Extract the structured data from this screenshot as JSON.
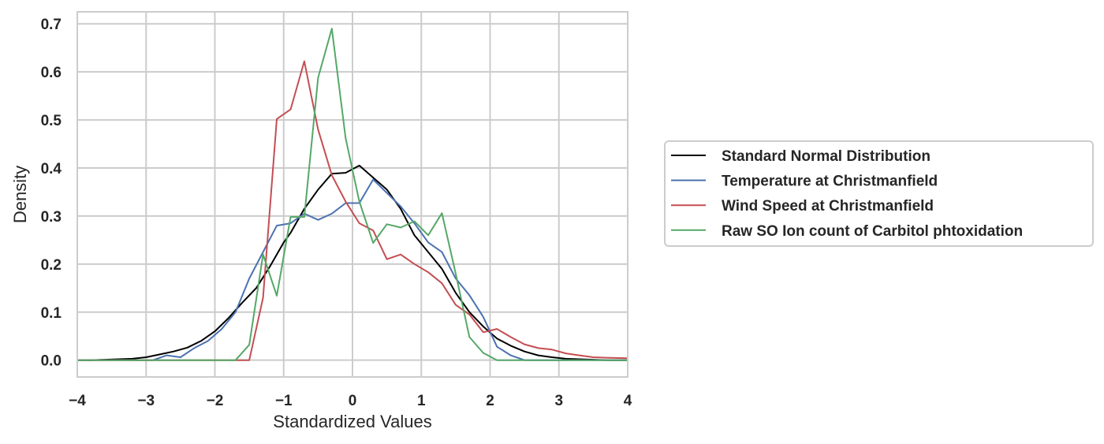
{
  "chart_data": {
    "type": "line",
    "xlabel": "Standardized Values",
    "ylabel": "Density",
    "xlim": [
      -4,
      4
    ],
    "ylim": [
      -0.035,
      0.725
    ],
    "xticks": [
      -4,
      -3,
      -2,
      -1,
      0,
      1,
      2,
      3,
      4
    ],
    "xtick_labels": [
      "−4",
      "−3",
      "−2",
      "−1",
      "0",
      "1",
      "2",
      "3",
      "4"
    ],
    "yticks": [
      0.0,
      0.1,
      0.2,
      0.3,
      0.4,
      0.5,
      0.6,
      0.7
    ],
    "ytick_labels": [
      "0.0",
      "0.1",
      "0.2",
      "0.3",
      "0.4",
      "0.5",
      "0.6",
      "0.7"
    ],
    "grid": true,
    "legend_position": "right, outside plot",
    "x": [
      -4.0,
      -3.8,
      -3.6,
      -3.4,
      -3.2,
      -3.0,
      -2.8,
      -2.6,
      -2.4,
      -2.2,
      -2.0,
      -1.8,
      -1.6,
      -1.4,
      -1.2,
      -1.0,
      -0.8,
      -0.6,
      -0.4,
      -0.2,
      0.0,
      0.2,
      0.4,
      0.6,
      0.8,
      1.0,
      1.2,
      1.4,
      1.6,
      1.8,
      2.0,
      2.2,
      2.4,
      2.6,
      2.8,
      3.0,
      3.2,
      3.4,
      3.6,
      3.8,
      4.0
    ],
    "series": [
      {
        "name": "Standard Normal Distribution",
        "color": "#000000",
        "x": [
          -4.0,
          -3.8,
          -3.6,
          -3.4,
          -3.2,
          -3.0,
          -2.8,
          -2.6,
          -2.4,
          -2.2,
          -2.0,
          -1.8,
          -1.6,
          -1.4,
          -1.2,
          -1.0,
          -0.9,
          -0.7,
          -0.5,
          -0.3,
          -0.1,
          0.1,
          0.3,
          0.5,
          0.7,
          0.9,
          1.1,
          1.3,
          1.5,
          1.7,
          1.9,
          2.1,
          2.3,
          2.5,
          2.7,
          2.9,
          3.1,
          3.3,
          3.5,
          3.7,
          4.0
        ],
        "values": [
          0.0,
          0.0,
          0.001,
          0.002,
          0.003,
          0.006,
          0.012,
          0.018,
          0.026,
          0.04,
          0.06,
          0.088,
          0.12,
          0.15,
          0.195,
          0.245,
          0.265,
          0.315,
          0.355,
          0.388,
          0.39,
          0.405,
          0.38,
          0.355,
          0.315,
          0.26,
          0.225,
          0.19,
          0.14,
          0.1,
          0.07,
          0.045,
          0.03,
          0.018,
          0.01,
          0.006,
          0.003,
          0.002,
          0.001,
          0.0,
          0.0
        ]
      },
      {
        "name": "Temperature at Christmanfield",
        "color": "#4c72b0",
        "x": [
          -4.0,
          -3.0,
          -2.9,
          -2.7,
          -2.5,
          -2.3,
          -2.1,
          -1.9,
          -1.7,
          -1.5,
          -1.3,
          -1.1,
          -0.9,
          -0.7,
          -0.5,
          -0.3,
          -0.1,
          0.1,
          0.3,
          0.5,
          0.7,
          0.9,
          1.1,
          1.3,
          1.5,
          1.7,
          1.9,
          2.1,
          2.3,
          2.5,
          2.7,
          4.0
        ],
        "values": [
          0.0,
          0.0,
          0.0,
          0.01,
          0.006,
          0.025,
          0.04,
          0.065,
          0.1,
          0.17,
          0.225,
          0.28,
          0.285,
          0.305,
          0.292,
          0.305,
          0.327,
          0.327,
          0.376,
          0.348,
          0.32,
          0.285,
          0.245,
          0.225,
          0.17,
          0.135,
          0.09,
          0.028,
          0.01,
          0.0,
          0.0,
          0.0
        ]
      },
      {
        "name": "Wind Speed at Christmanfield",
        "color": "#c44e52",
        "x": [
          -4.0,
          -1.7,
          -1.5,
          -1.3,
          -1.1,
          -0.9,
          -0.7,
          -0.5,
          -0.3,
          -0.1,
          0.1,
          0.3,
          0.5,
          0.7,
          0.9,
          1.1,
          1.3,
          1.5,
          1.7,
          1.9,
          2.1,
          2.3,
          2.5,
          2.7,
          2.9,
          3.1,
          3.3,
          3.5,
          3.7,
          4.0
        ],
        "values": [
          0.0,
          0.0,
          0.0,
          0.13,
          0.502,
          0.522,
          0.622,
          0.48,
          0.385,
          0.33,
          0.285,
          0.27,
          0.21,
          0.22,
          0.2,
          0.183,
          0.16,
          0.115,
          0.095,
          0.058,
          0.065,
          0.048,
          0.033,
          0.025,
          0.022,
          0.014,
          0.01,
          0.006,
          0.005,
          0.004
        ]
      },
      {
        "name": "Raw SO Ion count of Carbitol phtoxidation",
        "color": "#55a868",
        "x": [
          -4.0,
          -1.7,
          -1.5,
          -1.3,
          -1.1,
          -0.9,
          -0.7,
          -0.5,
          -0.3,
          -0.1,
          0.1,
          0.3,
          0.5,
          0.7,
          0.9,
          1.1,
          1.3,
          1.5,
          1.7,
          1.9,
          2.1,
          4.0
        ],
        "values": [
          0.0,
          0.0,
          0.032,
          0.22,
          0.134,
          0.298,
          0.298,
          0.588,
          0.69,
          0.462,
          0.33,
          0.244,
          0.283,
          0.276,
          0.289,
          0.26,
          0.306,
          0.18,
          0.048,
          0.015,
          0.0,
          0.0
        ]
      }
    ]
  }
}
